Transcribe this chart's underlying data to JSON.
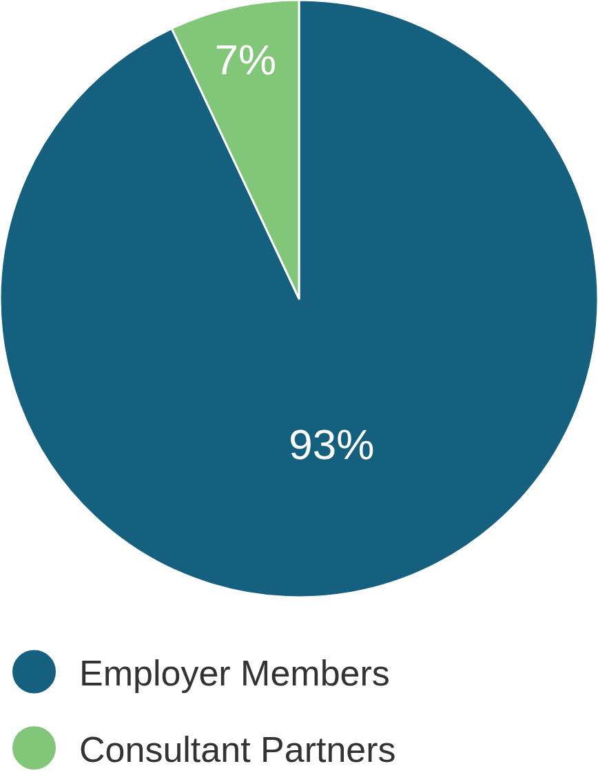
{
  "chart_data": {
    "type": "pie",
    "categories": [
      "Employer Members",
      "Consultant Partners"
    ],
    "values": [
      93,
      7
    ],
    "colors": [
      "#15607e",
      "#82c67a"
    ],
    "value_labels": [
      "93%",
      "7%"
    ],
    "legend": "bottom left"
  }
}
